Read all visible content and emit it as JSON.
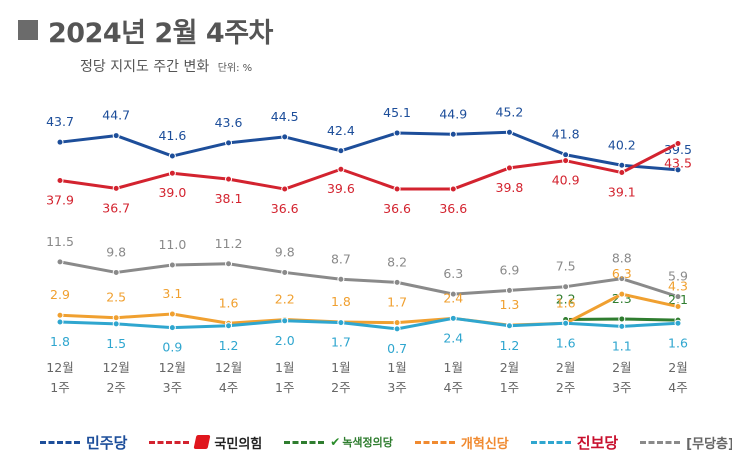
{
  "header": {
    "title": "2024년 2월 4주차",
    "subtitle": "정당 지지도 주간 변화",
    "unit": "단위: %"
  },
  "legend": [
    {
      "label": "민주당",
      "color": "#1d4e9a"
    },
    {
      "label": "국민의힘",
      "color": "#d3232f"
    },
    {
      "label": "녹색정의당",
      "color": "#2f7d2f"
    },
    {
      "label": "개혁신당",
      "color": "#f08a30"
    },
    {
      "label": "진보당",
      "color": "#2fa6cf"
    },
    {
      "label": "[무당층]",
      "color": "#8a8a8a"
    }
  ],
  "chart_data": {
    "type": "line",
    "categories": [
      [
        "12월",
        "1주"
      ],
      [
        "12월",
        "2주"
      ],
      [
        "12월",
        "3주"
      ],
      [
        "12월",
        "4주"
      ],
      [
        "1월",
        "1주"
      ],
      [
        "1월",
        "2주"
      ],
      [
        "1월",
        "3주"
      ],
      [
        "1월",
        "4주"
      ],
      [
        "2월",
        "1주"
      ],
      [
        "2월",
        "2주"
      ],
      [
        "2월",
        "3주"
      ],
      [
        "2월",
        "4주"
      ]
    ],
    "series": [
      {
        "name": "민주당",
        "color": "#1d4e9a",
        "values": [
          43.7,
          44.7,
          41.6,
          43.6,
          44.5,
          42.4,
          45.1,
          44.9,
          45.2,
          41.8,
          40.2,
          39.5
        ]
      },
      {
        "name": "국민의힘",
        "color": "#d3232f",
        "values": [
          37.9,
          36.7,
          39.0,
          38.1,
          36.6,
          39.6,
          36.6,
          36.6,
          39.8,
          40.9,
          39.1,
          43.5
        ]
      },
      {
        "name": "[무당층]",
        "color": "#8a8a8a",
        "values": [
          11.5,
          9.8,
          11.0,
          11.2,
          9.8,
          8.7,
          8.2,
          6.3,
          6.9,
          7.5,
          8.8,
          5.9
        ]
      },
      {
        "name": "녹색정의당",
        "color": "#2f7d2f",
        "values": [
          null,
          null,
          null,
          null,
          null,
          null,
          null,
          null,
          null,
          2.2,
          2.3,
          2.1
        ]
      },
      {
        "name": "개혁신당",
        "color": "#f0a030",
        "values": [
          2.9,
          2.5,
          3.1,
          1.6,
          2.2,
          1.8,
          1.7,
          2.4,
          1.3,
          1.6,
          6.3,
          4.3
        ]
      },
      {
        "name": "진보당",
        "color": "#2fa6cf",
        "values": [
          1.8,
          1.5,
          0.9,
          1.2,
          2.0,
          1.7,
          0.7,
          2.4,
          1.2,
          1.6,
          1.1,
          1.6
        ]
      }
    ]
  }
}
